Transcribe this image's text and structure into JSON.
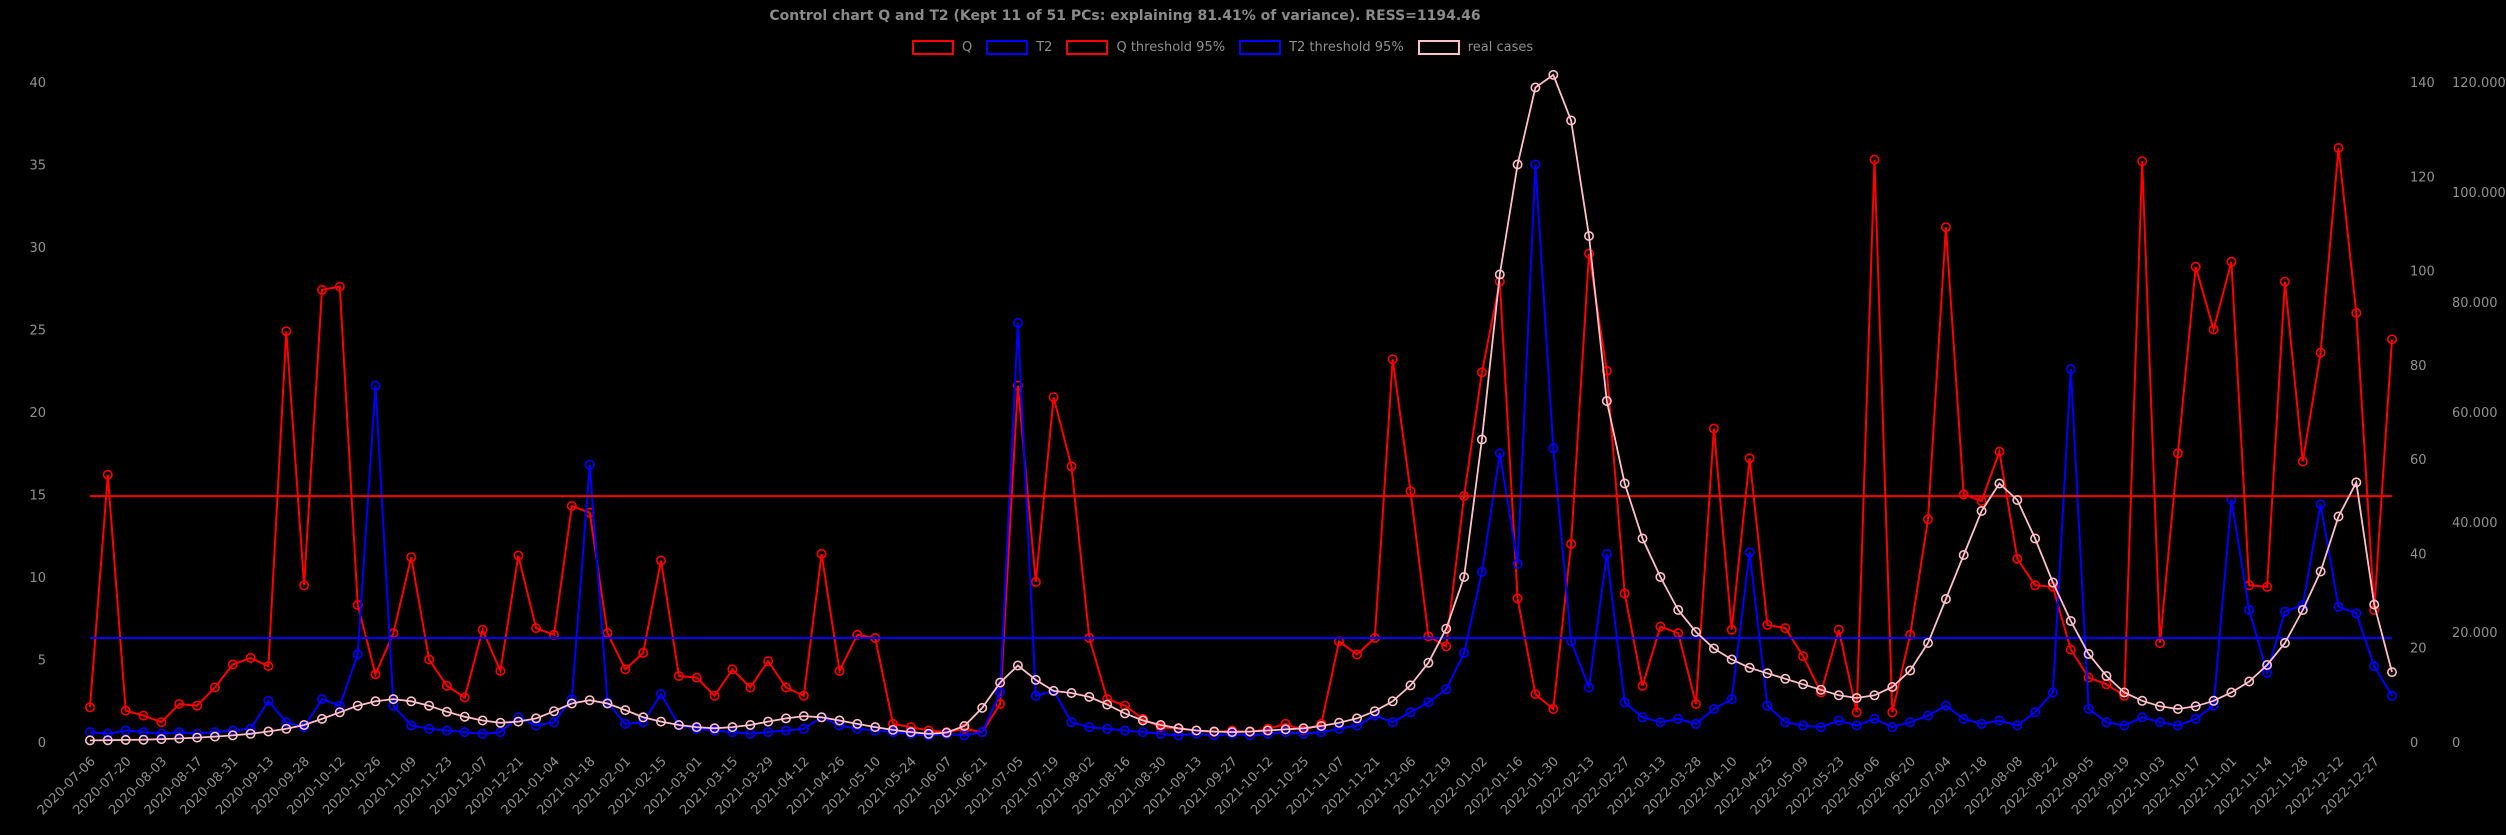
{
  "title": "Control chart Q and T2 (Kept 11 of 51 PCs: explaining 81.41% of variance). RESS=1194.46",
  "legend": {
    "entries": [
      {
        "label": "Q",
        "color": "#ff0000"
      },
      {
        "label": "T2",
        "color": "#0000ff"
      },
      {
        "label": "Q threshold 95%",
        "color": "#ff0000"
      },
      {
        "label": "T2 threshold 95%",
        "color": "#0000ff"
      },
      {
        "label": "real cases",
        "color": "#ffc0cb"
      }
    ]
  },
  "chart_data": {
    "type": "line",
    "background": "#000000",
    "text_color": "#909090",
    "x_tick_labels": [
      "2020-07-06",
      "2020-07-20",
      "2020-08-03",
      "2020-08-17",
      "2020-08-31",
      "2020-09-13",
      "2020-09-28",
      "2020-10-12",
      "2020-10-26",
      "2020-11-09",
      "2020-11-23",
      "2020-12-07",
      "2020-12-21",
      "2021-01-04",
      "2021-01-18",
      "2021-02-01",
      "2021-02-15",
      "2021-03-01",
      "2021-03-15",
      "2021-03-29",
      "2021-04-12",
      "2021-04-26",
      "2021-05-10",
      "2021-05-24",
      "2021-06-07",
      "2021-06-21",
      "2021-07-05",
      "2021-07-19",
      "2021-08-02",
      "2021-08-16",
      "2021-08-30",
      "2021-09-13",
      "2021-09-27",
      "2021-10-12",
      "2021-10-25",
      "2021-11-07",
      "2021-11-21",
      "2021-12-06",
      "2021-12-19",
      "2022-01-02",
      "2022-01-16",
      "2022-01-30",
      "2022-02-13",
      "2022-02-27",
      "2022-03-13",
      "2022-03-28",
      "2022-04-10",
      "2022-04-25",
      "2022-05-09",
      "2022-05-23",
      "2022-06-06",
      "2022-06-20",
      "2022-07-04",
      "2022-07-18",
      "2022-08-08",
      "2022-08-22",
      "2022-09-05",
      "2022-09-19",
      "2022-10-03",
      "2022-10-17",
      "2022-11-01",
      "2022-11-14",
      "2022-11-28",
      "2022-12-12",
      "2022-12-27"
    ],
    "points_per_tick": 2,
    "axes": {
      "left": {
        "min": 0,
        "max": 40,
        "ticks": [
          0,
          5,
          10,
          15,
          20,
          25,
          30,
          35,
          40
        ]
      },
      "right_inner": {
        "min": 0,
        "max": 140,
        "ticks": [
          0,
          20,
          40,
          60,
          80,
          100,
          120,
          140
        ]
      },
      "right_outer": {
        "min": 0,
        "max": 120000,
        "ticks": [
          0,
          20000,
          40000,
          60000,
          80000,
          100000,
          120000
        ],
        "tick_labels": [
          "0",
          "20.000",
          "40.000",
          "60.000",
          "80.000",
          "100.000",
          "120.000"
        ]
      }
    },
    "thresholds": [
      {
        "name": "Q threshold 95%",
        "axis": "left",
        "value": 14.9,
        "color": "#ff0000"
      },
      {
        "name": "T2 threshold 95%",
        "axis": "left",
        "value": 6.3,
        "color": "#0000ff"
      }
    ],
    "series": [
      {
        "name": "Q",
        "axis": "left",
        "color": "#ff0000",
        "values": [
          2.1,
          16.2,
          1.9,
          1.6,
          1.2,
          2.3,
          2.2,
          3.3,
          4.7,
          5.1,
          4.6,
          24.9,
          9.5,
          27.4,
          27.6,
          8.3,
          4.1,
          6.6,
          11.2,
          5.0,
          3.4,
          2.7,
          6.8,
          4.3,
          11.3,
          6.9,
          6.5,
          14.3,
          13.9,
          6.6,
          4.4,
          5.4,
          11.0,
          4.0,
          3.9,
          2.8,
          4.4,
          3.3,
          4.9,
          3.3,
          2.8,
          11.4,
          4.3,
          6.5,
          6.3,
          1.1,
          0.9,
          0.7,
          0.6,
          0.8,
          0.6,
          2.3,
          21.6,
          9.7,
          20.9,
          16.7,
          6.3,
          2.6,
          2.2,
          1.4,
          0.9,
          0.8,
          0.7,
          0.6,
          0.7,
          0.6,
          0.8,
          1.1,
          0.7,
          1.1,
          6.1,
          5.3,
          6.3,
          23.2,
          15.2,
          6.4,
          5.8,
          14.9,
          22.4,
          27.9,
          8.7,
          2.9,
          2.0,
          12.0,
          29.6,
          22.5,
          9.0,
          3.4,
          7.0,
          6.6,
          2.3,
          19.0,
          6.8,
          17.2,
          7.1,
          6.9,
          5.2,
          3.0,
          6.8,
          1.8,
          35.3,
          1.8,
          6.5,
          13.5,
          31.2,
          15.0,
          14.6,
          17.6,
          11.1,
          9.5,
          9.4,
          5.6,
          3.9,
          3.5,
          2.8,
          35.2,
          6.0,
          17.5,
          28.8,
          25.0,
          29.1,
          9.5,
          9.4,
          27.9,
          17.0,
          23.6,
          36.0,
          26.0,
          8.0,
          24.4
        ]
      },
      {
        "name": "T2",
        "axis": "left",
        "color": "#0000ff",
        "values": [
          0.6,
          0.5,
          0.7,
          0.6,
          0.5,
          0.6,
          0.5,
          0.6,
          0.7,
          0.8,
          2.5,
          1.2,
          0.9,
          2.6,
          2.2,
          5.3,
          21.6,
          2.2,
          1.0,
          0.8,
          0.7,
          0.6,
          0.5,
          0.6,
          1.5,
          1.0,
          1.2,
          2.6,
          16.8,
          2.4,
          1.1,
          1.2,
          2.9,
          1.0,
          0.8,
          0.7,
          0.6,
          0.5,
          0.6,
          0.7,
          0.8,
          1.5,
          1.0,
          0.8,
          0.7,
          0.6,
          0.5,
          0.4,
          0.5,
          0.4,
          0.6,
          3.0,
          25.4,
          2.8,
          3.1,
          1.2,
          0.9,
          0.8,
          0.7,
          0.6,
          0.5,
          0.4,
          0.5,
          0.4,
          0.5,
          0.4,
          0.5,
          0.6,
          0.5,
          0.6,
          0.8,
          1.0,
          1.6,
          1.2,
          1.8,
          2.4,
          3.2,
          5.4,
          10.3,
          17.5,
          10.8,
          35.0,
          17.8,
          6.1,
          3.3,
          11.4,
          2.4,
          1.5,
          1.2,
          1.4,
          1.1,
          2.0,
          2.6,
          11.5,
          2.2,
          1.2,
          1.0,
          0.9,
          1.3,
          1.0,
          1.4,
          0.9,
          1.2,
          1.6,
          2.2,
          1.4,
          1.1,
          1.3,
          1.0,
          1.8,
          3.0,
          22.6,
          2.0,
          1.2,
          1.0,
          1.5,
          1.2,
          1.0,
          1.4,
          2.2,
          14.7,
          8.0,
          4.2,
          7.9,
          8.3,
          14.4,
          8.2,
          7.8,
          4.6,
          2.8
        ]
      },
      {
        "name": "real cases",
        "axis": "right_outer",
        "color": "#ffc0cb",
        "values": [
          300,
          320,
          380,
          420,
          520,
          640,
          800,
          980,
          1200,
          1500,
          1900,
          2400,
          3100,
          4200,
          5400,
          6600,
          7400,
          7800,
          7400,
          6600,
          5500,
          4600,
          3900,
          3500,
          3700,
          4300,
          5600,
          7000,
          7600,
          7000,
          5800,
          4500,
          3700,
          3100,
          2700,
          2500,
          2700,
          3100,
          3700,
          4300,
          4700,
          4500,
          3900,
          3300,
          2700,
          2200,
          1800,
          1500,
          1700,
          2900,
          6200,
          10800,
          13900,
          11300,
          9300,
          8900,
          8200,
          6800,
          5200,
          3900,
          3100,
          2500,
          2100,
          1900,
          1800,
          1900,
          2100,
          2300,
          2500,
          2900,
          3500,
          4300,
          5600,
          7400,
          10300,
          14400,
          20600,
          30000,
          55000,
          85000,
          105000,
          119000,
          121300,
          113000,
          92000,
          62000,
          47000,
          37000,
          30000,
          24000,
          20000,
          17000,
          15000,
          13500,
          12500,
          11500,
          10500,
          9500,
          8500,
          8000,
          8500,
          10000,
          13000,
          18000,
          26000,
          34000,
          42000,
          47000,
          44000,
          37000,
          29000,
          22000,
          16000,
          12000,
          9000,
          7500,
          6500,
          6000,
          6500,
          7500,
          9000,
          11000,
          14000,
          18000,
          24000,
          31000,
          41000,
          47200,
          25000,
          12700
        ]
      }
    ]
  }
}
